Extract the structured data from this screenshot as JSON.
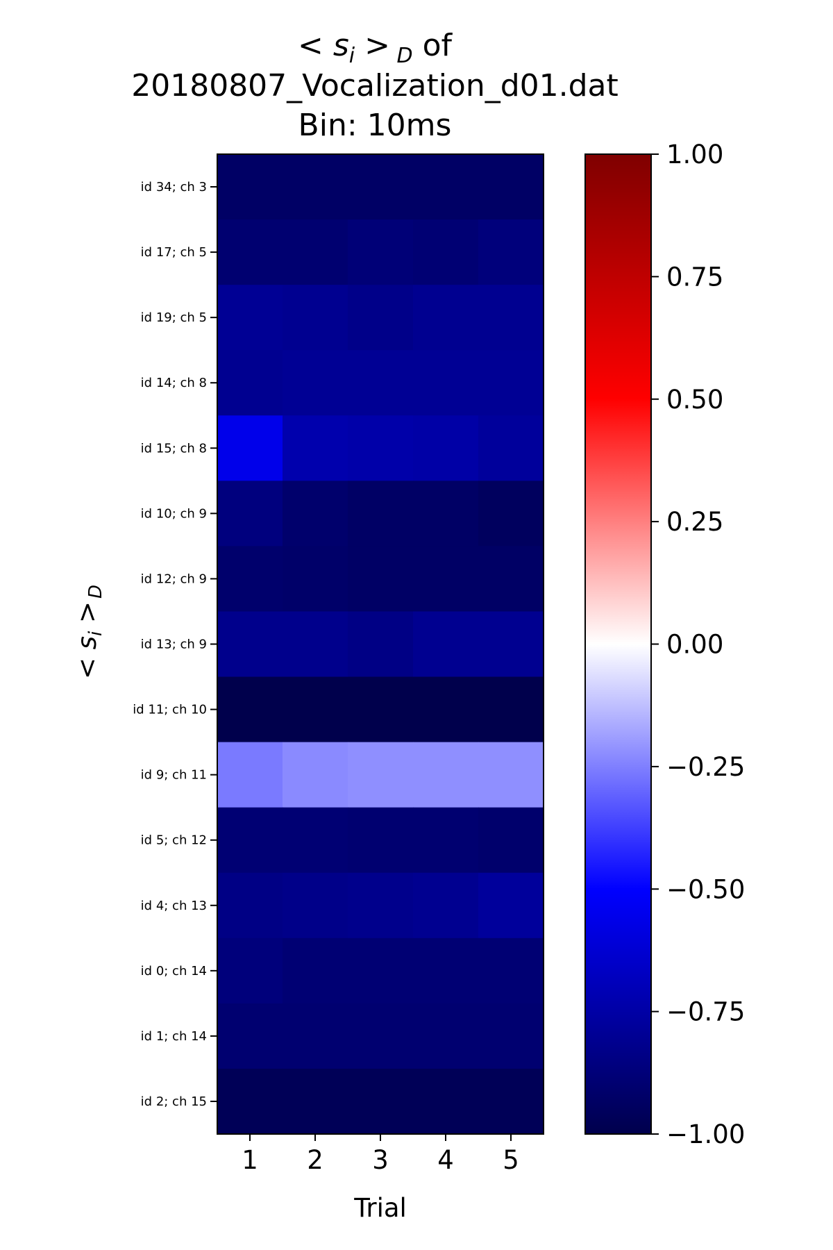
{
  "chart_data": {
    "type": "heatmap",
    "title_lines": [
      "<s_i>_D of",
      "20180807_Vocalization_d01.dat",
      "Bin: 10ms"
    ],
    "title_symbol": {
      "lt": "<",
      "s": "s",
      "i": "i",
      "gt": ">",
      "D": "D",
      "suffix": "of"
    },
    "xlabel": "Trial",
    "ylabel_symbol": {
      "lt": "<",
      "s": "s",
      "i": "i",
      "gt": ">",
      "D": "D"
    },
    "x": [
      1,
      2,
      3,
      4,
      5
    ],
    "xtick_labels": [
      "1",
      "2",
      "3",
      "4",
      "5"
    ],
    "rows": [
      "id 34; ch 3",
      "id 17; ch 5",
      "id 19; ch 5",
      "id 14; ch 8",
      "id 15; ch 8",
      "id 10; ch 9",
      "id 12; ch 9",
      "id 13; ch 9",
      "id 11; ch 10",
      "id 9; ch 11",
      "id 5; ch 12",
      "id 4; ch 13",
      "id 0; ch 14",
      "id 1; ch 14",
      "id 2; ch 15"
    ],
    "values": [
      [
        -0.93,
        -0.93,
        -0.93,
        -0.93,
        -0.93
      ],
      [
        -0.9,
        -0.9,
        -0.88,
        -0.89,
        -0.87
      ],
      [
        -0.8,
        -0.81,
        -0.83,
        -0.81,
        -0.81
      ],
      [
        -0.81,
        -0.8,
        -0.8,
        -0.8,
        -0.8
      ],
      [
        -0.56,
        -0.73,
        -0.74,
        -0.75,
        -0.78
      ],
      [
        -0.86,
        -0.91,
        -0.93,
        -0.93,
        -0.95
      ],
      [
        -0.91,
        -0.92,
        -0.93,
        -0.93,
        -0.93
      ],
      [
        -0.82,
        -0.82,
        -0.84,
        -0.81,
        -0.81
      ],
      [
        -1.0,
        -1.0,
        -1.0,
        -1.0,
        -1.0
      ],
      [
        -0.26,
        -0.23,
        -0.22,
        -0.22,
        -0.22
      ],
      [
        -0.89,
        -0.89,
        -0.9,
        -0.9,
        -0.91
      ],
      [
        -0.84,
        -0.83,
        -0.82,
        -0.81,
        -0.78
      ],
      [
        -0.87,
        -0.89,
        -0.89,
        -0.89,
        -0.89
      ],
      [
        -0.9,
        -0.9,
        -0.9,
        -0.9,
        -0.9
      ],
      [
        -0.97,
        -0.97,
        -0.97,
        -0.97,
        -0.97
      ]
    ],
    "colormap": "seismic",
    "colormap_stops": [
      {
        "v": -1.0,
        "color": "#00004c"
      },
      {
        "v": -0.5,
        "color": "#0000ff"
      },
      {
        "v": 0.0,
        "color": "#ffffff"
      },
      {
        "v": 0.5,
        "color": "#ff0000"
      },
      {
        "v": 1.0,
        "color": "#7f0000"
      }
    ],
    "colorbar": {
      "range": [
        -1.0,
        1.0
      ],
      "ticks": [
        1.0,
        0.75,
        0.5,
        0.25,
        0.0,
        -0.25,
        -0.5,
        -0.75,
        -1.0
      ],
      "tick_labels": [
        "1.00",
        "0.75",
        "0.50",
        "0.25",
        "0.00",
        "−0.25",
        "−0.50",
        "−0.75",
        "−1.00"
      ]
    },
    "grid": false,
    "legend": "none"
  }
}
